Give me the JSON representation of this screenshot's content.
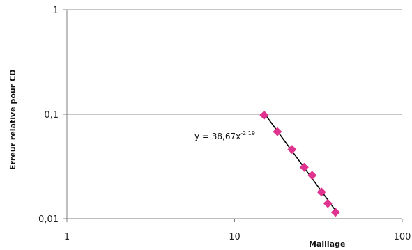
{
  "chart_data": {
    "type": "scatter",
    "xlabel": "Maillage",
    "ylabel": "Erreur relative pour CD",
    "x_scale": "log",
    "y_scale": "log",
    "xlim": [
      1,
      100
    ],
    "ylim": [
      0.01,
      1
    ],
    "x_ticks": [
      "1",
      "10",
      "100"
    ],
    "y_ticks": [
      "0,01",
      "0,1",
      "1"
    ],
    "grid": "horizontal",
    "series": [
      {
        "marker": "diamond",
        "color": "#e0338f",
        "x": [
          15,
          18,
          22,
          26,
          29,
          33,
          36,
          40
        ],
        "y": [
          0.098,
          0.068,
          0.046,
          0.031,
          0.026,
          0.018,
          0.014,
          0.0115
        ]
      }
    ],
    "trendline": {
      "type": "power",
      "coefficient": 38.67,
      "exponent": -2.19,
      "x_range": [
        15,
        40
      ],
      "color": "#000000",
      "label_base": "y = 38,67x",
      "label_exponent": "-2,19"
    }
  }
}
